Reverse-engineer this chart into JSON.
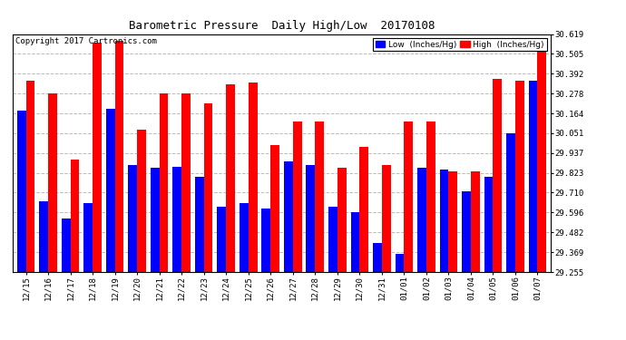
{
  "title": "Barometric Pressure  Daily High/Low  20170108",
  "copyright": "Copyright 2017 Cartronics.com",
  "legend_low": "Low  (Inches/Hg)",
  "legend_high": "High  (Inches/Hg)",
  "dates": [
    "12/15",
    "12/16",
    "12/17",
    "12/18",
    "12/19",
    "12/20",
    "12/21",
    "12/22",
    "12/23",
    "12/24",
    "12/25",
    "12/26",
    "12/27",
    "12/28",
    "12/29",
    "12/30",
    "12/31",
    "01/01",
    "01/02",
    "01/03",
    "01/04",
    "01/05",
    "01/06",
    "01/07"
  ],
  "low": [
    30.18,
    29.66,
    29.56,
    29.65,
    30.19,
    29.87,
    29.85,
    29.86,
    29.8,
    29.63,
    29.65,
    29.62,
    29.89,
    29.87,
    29.63,
    29.6,
    29.42,
    29.36,
    29.85,
    29.84,
    29.72,
    29.8,
    30.05,
    30.35
  ],
  "high": [
    30.35,
    30.28,
    29.9,
    30.57,
    30.58,
    30.07,
    30.28,
    30.28,
    30.22,
    30.33,
    30.34,
    29.98,
    30.12,
    30.12,
    29.85,
    29.97,
    29.87,
    30.12,
    30.12,
    29.83,
    29.83,
    30.36,
    30.35,
    30.55
  ],
  "ylim_min": 29.255,
  "ylim_max": 30.619,
  "yticks": [
    29.255,
    29.369,
    29.482,
    29.596,
    29.71,
    29.823,
    29.937,
    30.051,
    30.164,
    30.278,
    30.392,
    30.505,
    30.619
  ],
  "color_low": "#0000ff",
  "color_high": "#ff0000",
  "bg_color": "#ffffff",
  "grid_color": "#aaaaaa",
  "title_fontsize": 9,
  "copyright_fontsize": 6.5,
  "tick_fontsize": 6.5,
  "bar_width": 0.4
}
